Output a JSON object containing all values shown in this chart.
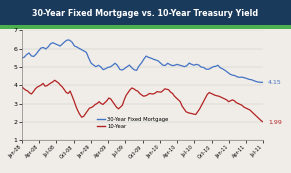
{
  "title": "30-Year Fixed Mortgage vs. 10-Year Treasury Yield",
  "title_bg_left": "#1a3a5c",
  "title_bg_right": "#2e6da4",
  "title_color": "white",
  "green_bar": "#4caf50",
  "bg_color": "#f0ede8",
  "plot_bg": "#f0ede8",
  "blue_color": "#4472c4",
  "red_color": "#b22222",
  "ylim": [
    1,
    7
  ],
  "yticks": [
    1,
    2,
    3,
    4,
    5,
    6,
    7
  ],
  "legend_labels": [
    "30-Year Fixed Mortgage",
    "10-Year"
  ],
  "end_label_mortgage": "4.15",
  "end_label_treasury": "1.99",
  "xtick_labels": [
    "Jan-08",
    "Apr-08",
    "Jul-08",
    "Oct-08",
    "Jan-09",
    "Apr-09",
    "Jul-09",
    "Oct-09",
    "Jan-10",
    "Apr-10",
    "Jul-10",
    "Oct-10",
    "Jan-11",
    "Apr-11",
    "Jul-11"
  ],
  "mortgage_data": [
    5.48,
    5.53,
    5.67,
    5.76,
    5.6,
    5.57,
    5.7,
    5.88,
    6.03,
    6.06,
    5.98,
    6.09,
    6.26,
    6.32,
    6.26,
    6.2,
    6.14,
    6.26,
    6.38,
    6.47,
    6.46,
    6.35,
    6.14,
    6.09,
    6.01,
    5.94,
    5.87,
    5.79,
    5.47,
    5.2,
    5.1,
    5.01,
    5.09,
    5.0,
    4.85,
    4.9,
    4.97,
    5.0,
    5.09,
    5.2,
    5.08,
    4.86,
    4.83,
    4.91,
    5.01,
    5.1,
    4.95,
    4.84,
    4.81,
    5.05,
    5.21,
    5.42,
    5.59,
    5.52,
    5.48,
    5.42,
    5.38,
    5.33,
    5.21,
    5.09,
    5.08,
    5.2,
    5.12,
    5.07,
    5.09,
    5.14,
    5.09,
    5.06,
    5.01,
    5.07,
    5.21,
    5.14,
    5.09,
    5.14,
    5.1,
    4.99,
    4.97,
    4.88,
    4.87,
    4.93,
    5.01,
    5.03,
    5.09,
    4.95,
    4.89,
    4.81,
    4.71,
    4.61,
    4.55,
    4.53,
    4.46,
    4.43,
    4.44,
    4.41,
    4.37,
    4.32,
    4.3,
    4.25,
    4.2,
    4.17,
    4.16,
    4.15
  ],
  "treasury_data": [
    3.91,
    3.82,
    3.73,
    3.69,
    3.58,
    3.52,
    3.65,
    3.8,
    3.9,
    3.95,
    4.01,
    4.1,
    3.95,
    3.97,
    4.05,
    4.12,
    4.18,
    4.27,
    4.2,
    4.12,
    4.0,
    3.9,
    3.75,
    3.6,
    3.55,
    3.68,
    3.42,
    3.15,
    2.85,
    2.6,
    2.4,
    2.25,
    2.3,
    2.45,
    2.6,
    2.75,
    2.78,
    2.85,
    2.95,
    3.0,
    3.1,
    3.0,
    2.95,
    3.05,
    3.15,
    3.3,
    3.25,
    3.1,
    2.95,
    2.8,
    2.71,
    2.8,
    2.9,
    3.2,
    3.45,
    3.6,
    3.75,
    3.85,
    3.8,
    3.72,
    3.68,
    3.55,
    3.47,
    3.4,
    3.42,
    3.47,
    3.55,
    3.53,
    3.52,
    3.57,
    3.65,
    3.63,
    3.62,
    3.7,
    3.8,
    3.78,
    3.75,
    3.62,
    3.55,
    3.4,
    3.3,
    3.2,
    3.1,
    2.85,
    2.7,
    2.55,
    2.5,
    2.47,
    2.45,
    2.42,
    2.4,
    2.55,
    2.7,
    2.9,
    3.1,
    3.3,
    3.5,
    3.6,
    3.55,
    3.5,
    3.45,
    3.42,
    3.4,
    3.35,
    3.3,
    3.25,
    3.2,
    3.1,
    3.15,
    3.2,
    3.15,
    3.05,
    3.0,
    2.95,
    2.9,
    2.8,
    2.75,
    2.7,
    2.65,
    2.55,
    2.45,
    2.35,
    2.25,
    2.15,
    2.05,
    1.99
  ]
}
